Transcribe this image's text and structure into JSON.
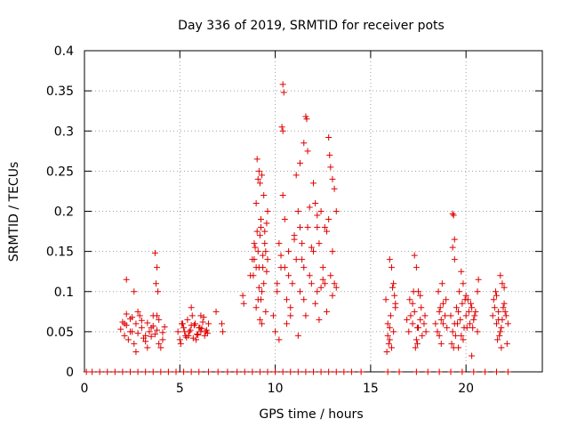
{
  "chart_data": {
    "type": "scatter",
    "title": "Day 336 of 2019, SRMTID for receiver pots",
    "xlabel": "GPS time / hours",
    "ylabel": "SRMTID / TECUs",
    "xlim": [
      0,
      24
    ],
    "ylim": [
      0,
      0.4
    ],
    "xticks": [
      0,
      5,
      10,
      15,
      20
    ],
    "yticks": [
      0,
      0.05,
      0.1,
      0.15,
      0.2,
      0.25,
      0.3,
      0.35,
      0.4
    ],
    "grid": true,
    "marker": "+",
    "color": "#e00000",
    "series": [
      {
        "name": "SRMTID",
        "x": [
          0.1,
          0.4,
          0.8,
          1.2,
          1.6,
          2.0,
          2.4,
          2.8,
          3.2,
          3.6,
          4.0,
          4.4,
          4.8,
          5.2,
          5.6,
          6.0,
          6.5,
          7.0,
          7.5,
          8.0,
          8.4,
          8.8,
          9.2,
          9.6,
          10.0,
          10.4,
          10.8,
          11.2,
          11.6,
          12.0,
          12.4,
          12.8,
          13.2,
          13.6,
          14.0,
          14.5,
          15.9,
          16.5,
          17.4,
          18.0,
          18.6,
          19.2,
          19.8,
          20.4,
          21.0,
          21.6,
          22.2,
          1.9,
          2.0,
          2.1,
          2.2,
          2.3,
          2.4,
          2.5,
          2.6,
          2.7,
          2.8,
          2.9,
          3.0,
          3.1,
          3.2,
          3.3,
          3.4,
          3.5,
          3.6,
          3.7,
          3.8,
          3.9,
          4.0,
          4.1,
          4.2,
          2.2,
          2.5,
          2.8,
          3.0,
          3.3,
          3.6,
          3.9,
          4.1,
          2.1,
          2.4,
          2.7,
          3.2,
          3.5,
          3.8,
          2.2,
          2.6,
          3.7,
          3.8,
          3.75,
          3.85,
          4.9,
          5.0,
          5.1,
          5.2,
          5.3,
          5.4,
          5.5,
          5.6,
          5.7,
          5.8,
          5.9,
          6.0,
          6.1,
          6.2,
          6.3,
          6.4,
          6.5,
          5.05,
          5.25,
          5.45,
          5.65,
          5.85,
          6.05,
          6.25,
          6.45,
          5.15,
          5.35,
          5.55,
          5.75,
          5.95,
          6.15,
          6.35,
          6.9,
          7.2,
          7.25,
          5.6,
          6.1,
          8.3,
          8.35,
          8.7,
          8.8,
          8.9,
          9.0,
          9.1,
          9.2,
          9.3,
          9.4,
          9.5,
          9.6,
          8.85,
          8.95,
          9.05,
          9.15,
          9.25,
          9.35,
          9.45,
          9.55,
          9.0,
          9.2,
          9.4,
          9.1,
          9.3,
          9.05,
          9.15,
          9.25,
          9.0,
          9.2,
          9.1,
          9.3,
          9.5,
          9.55,
          9.6,
          9.45,
          9.35,
          9.15,
          9.25,
          8.9,
          9.9,
          10.0,
          10.1,
          10.2,
          10.3,
          10.4,
          10.5,
          10.6,
          10.7,
          10.8,
          10.9,
          11.0,
          11.1,
          11.2,
          11.3,
          11.4,
          11.5,
          11.6,
          11.7,
          11.8,
          11.9,
          12.0,
          12.1,
          12.2,
          12.3,
          12.4,
          12.5,
          12.6,
          12.7,
          12.8,
          12.9,
          13.0,
          13.1,
          13.2,
          10.4,
          10.45,
          10.35,
          10.4,
          11.6,
          11.65,
          12.8,
          12.85,
          11.1,
          11.3,
          11.5,
          11.7,
          12.9,
          13.0,
          13.1,
          12.0,
          12.1,
          12.2,
          10.2,
          10.6,
          11.0,
          11.4,
          11.8,
          12.2,
          12.6,
          13.0,
          10.3,
          10.7,
          11.2,
          11.9,
          12.4,
          12.7,
          10.5,
          11.5,
          12.5,
          10.1,
          10.8,
          11.3,
          12.3,
          13.2,
          15.8,
          15.9,
          16.0,
          16.1,
          16.2,
          16.3,
          15.85,
          15.95,
          16.05,
          16.15,
          16.0,
          16.1,
          16.2,
          15.9,
          16.0,
          16.3,
          16.25,
          16.9,
          17.0,
          17.1,
          17.2,
          17.3,
          17.4,
          17.5,
          17.6,
          17.7,
          17.8,
          17.9,
          17.05,
          17.25,
          17.45,
          17.65,
          17.85,
          17.3,
          17.4,
          17.5,
          17.35,
          17.45,
          17.2,
          17.6,
          18.4,
          18.5,
          18.6,
          18.7,
          18.8,
          18.9,
          19.0,
          18.55,
          18.75,
          18.95,
          18.6,
          18.8,
          18.7,
          18.65,
          19.2,
          19.3,
          19.4,
          19.5,
          19.6,
          19.7,
          19.8,
          19.9,
          20.0,
          20.1,
          20.2,
          20.3,
          20.4,
          20.5,
          20.6,
          19.25,
          19.45,
          19.65,
          19.85,
          20.05,
          20.25,
          20.45,
          19.35,
          19.55,
          19.75,
          19.95,
          20.15,
          20.35,
          19.3,
          19.35,
          19.4,
          19.3,
          19.4,
          19.75,
          19.85,
          20.6,
          20.65,
          19.6,
          20.0,
          20.3,
          21.4,
          21.5,
          21.6,
          21.7,
          21.8,
          21.9,
          22.0,
          22.1,
          22.2,
          21.45,
          21.65,
          21.85,
          22.05,
          21.55,
          21.75,
          21.95,
          21.8,
          21.9,
          22.0,
          21.85,
          22.15,
          21.6,
          21.7
        ],
        "y": [
          0.0,
          0.0,
          0.0,
          0.0,
          0.0,
          0.0,
          0.0,
          0.0,
          0.0,
          0.0,
          0.0,
          0.0,
          0.0,
          0.0,
          0.0,
          0.0,
          0.0,
          0.0,
          0.0,
          0.0,
          0.0,
          0.0,
          0.0,
          0.0,
          0.0,
          0.0,
          0.0,
          0.0,
          0.0,
          0.0,
          0.0,
          0.0,
          0.0,
          0.0,
          0.0,
          0.0,
          0.0,
          0.0,
          0.0,
          0.0,
          0.0,
          0.0,
          0.0,
          0.0,
          0.0,
          0.0,
          0.0,
          0.053,
          0.062,
          0.045,
          0.058,
          0.04,
          0.066,
          0.05,
          0.035,
          0.06,
          0.048,
          0.07,
          0.055,
          0.042,
          0.038,
          0.061,
          0.05,
          0.044,
          0.057,
          0.047,
          0.052,
          0.035,
          0.03,
          0.049,
          0.056,
          0.072,
          0.068,
          0.075,
          0.064,
          0.03,
          0.07,
          0.065,
          0.04,
          0.06,
          0.05,
          0.025,
          0.045,
          0.055,
          0.07,
          0.115,
          0.1,
          0.148,
          0.13,
          0.11,
          0.1,
          0.05,
          0.04,
          0.06,
          0.055,
          0.045,
          0.065,
          0.05,
          0.058,
          0.042,
          0.06,
          0.047,
          0.055,
          0.05,
          0.062,
          0.045,
          0.052,
          0.06,
          0.035,
          0.05,
          0.045,
          0.07,
          0.04,
          0.055,
          0.068,
          0.048,
          0.06,
          0.043,
          0.052,
          0.058,
          0.046,
          0.054,
          0.05,
          0.075,
          0.06,
          0.05,
          0.08,
          0.07,
          0.095,
          0.085,
          0.12,
          0.14,
          0.16,
          0.13,
          0.15,
          0.17,
          0.1,
          0.11,
          0.15,
          0.14,
          0.12,
          0.155,
          0.175,
          0.13,
          0.19,
          0.145,
          0.16,
          0.125,
          0.21,
          0.235,
          0.22,
          0.24,
          0.245,
          0.265,
          0.25,
          0.18,
          0.08,
          0.065,
          0.09,
          0.06,
          0.075,
          0.185,
          0.2,
          0.175,
          0.13,
          0.105,
          0.09,
          0.14,
          0.07,
          0.05,
          0.1,
          0.16,
          0.13,
          0.22,
          0.19,
          0.09,
          0.15,
          0.08,
          0.11,
          0.17,
          0.14,
          0.2,
          0.1,
          0.16,
          0.13,
          0.07,
          0.18,
          0.12,
          0.11,
          0.15,
          0.085,
          0.1,
          0.065,
          0.2,
          0.13,
          0.18,
          0.075,
          0.19,
          0.12,
          0.15,
          0.11,
          0.2,
          0.358,
          0.348,
          0.305,
          0.3,
          0.318,
          0.315,
          0.292,
          0.27,
          0.245,
          0.26,
          0.285,
          0.275,
          0.255,
          0.24,
          0.228,
          0.235,
          0.21,
          0.195,
          0.04,
          0.06,
          0.165,
          0.14,
          0.205,
          0.18,
          0.11,
          0.095,
          0.145,
          0.12,
          0.045,
          0.155,
          0.105,
          0.175,
          0.13,
          0.09,
          0.115,
          0.11,
          0.07,
          0.18,
          0.16,
          0.105,
          0.09,
          0.06,
          0.04,
          0.03,
          0.05,
          0.08,
          0.025,
          0.035,
          0.07,
          0.105,
          0.14,
          0.13,
          0.11,
          0.045,
          0.055,
          0.085,
          0.095,
          0.065,
          0.05,
          0.07,
          0.06,
          0.075,
          0.04,
          0.055,
          0.065,
          0.045,
          0.06,
          0.05,
          0.09,
          0.1,
          0.035,
          0.08,
          0.07,
          0.145,
          0.13,
          0.1,
          0.03,
          0.055,
          0.085,
          0.095,
          0.06,
          0.05,
          0.075,
          0.065,
          0.085,
          0.07,
          0.055,
          0.1,
          0.11,
          0.09,
          0.045,
          0.06,
          0.035,
          0.08,
          0.07,
          0.05,
          0.06,
          0.08,
          0.075,
          0.065,
          0.085,
          0.055,
          0.07,
          0.09,
          0.06,
          0.08,
          0.065,
          0.075,
          0.05,
          0.035,
          0.045,
          0.1,
          0.04,
          0.055,
          0.085,
          0.07,
          0.03,
          0.06,
          0.045,
          0.09,
          0.075,
          0.055,
          0.197,
          0.195,
          0.165,
          0.155,
          0.14,
          0.125,
          0.11,
          0.1,
          0.115,
          0.03,
          0.095,
          0.02,
          0.07,
          0.08,
          0.06,
          0.075,
          0.05,
          0.065,
          0.085,
          0.07,
          0.06,
          0.09,
          0.04,
          0.055,
          0.075,
          0.1,
          0.045,
          0.08,
          0.12,
          0.11,
          0.105,
          0.03,
          0.035,
          0.095,
          0.065
        ]
      }
    ]
  }
}
